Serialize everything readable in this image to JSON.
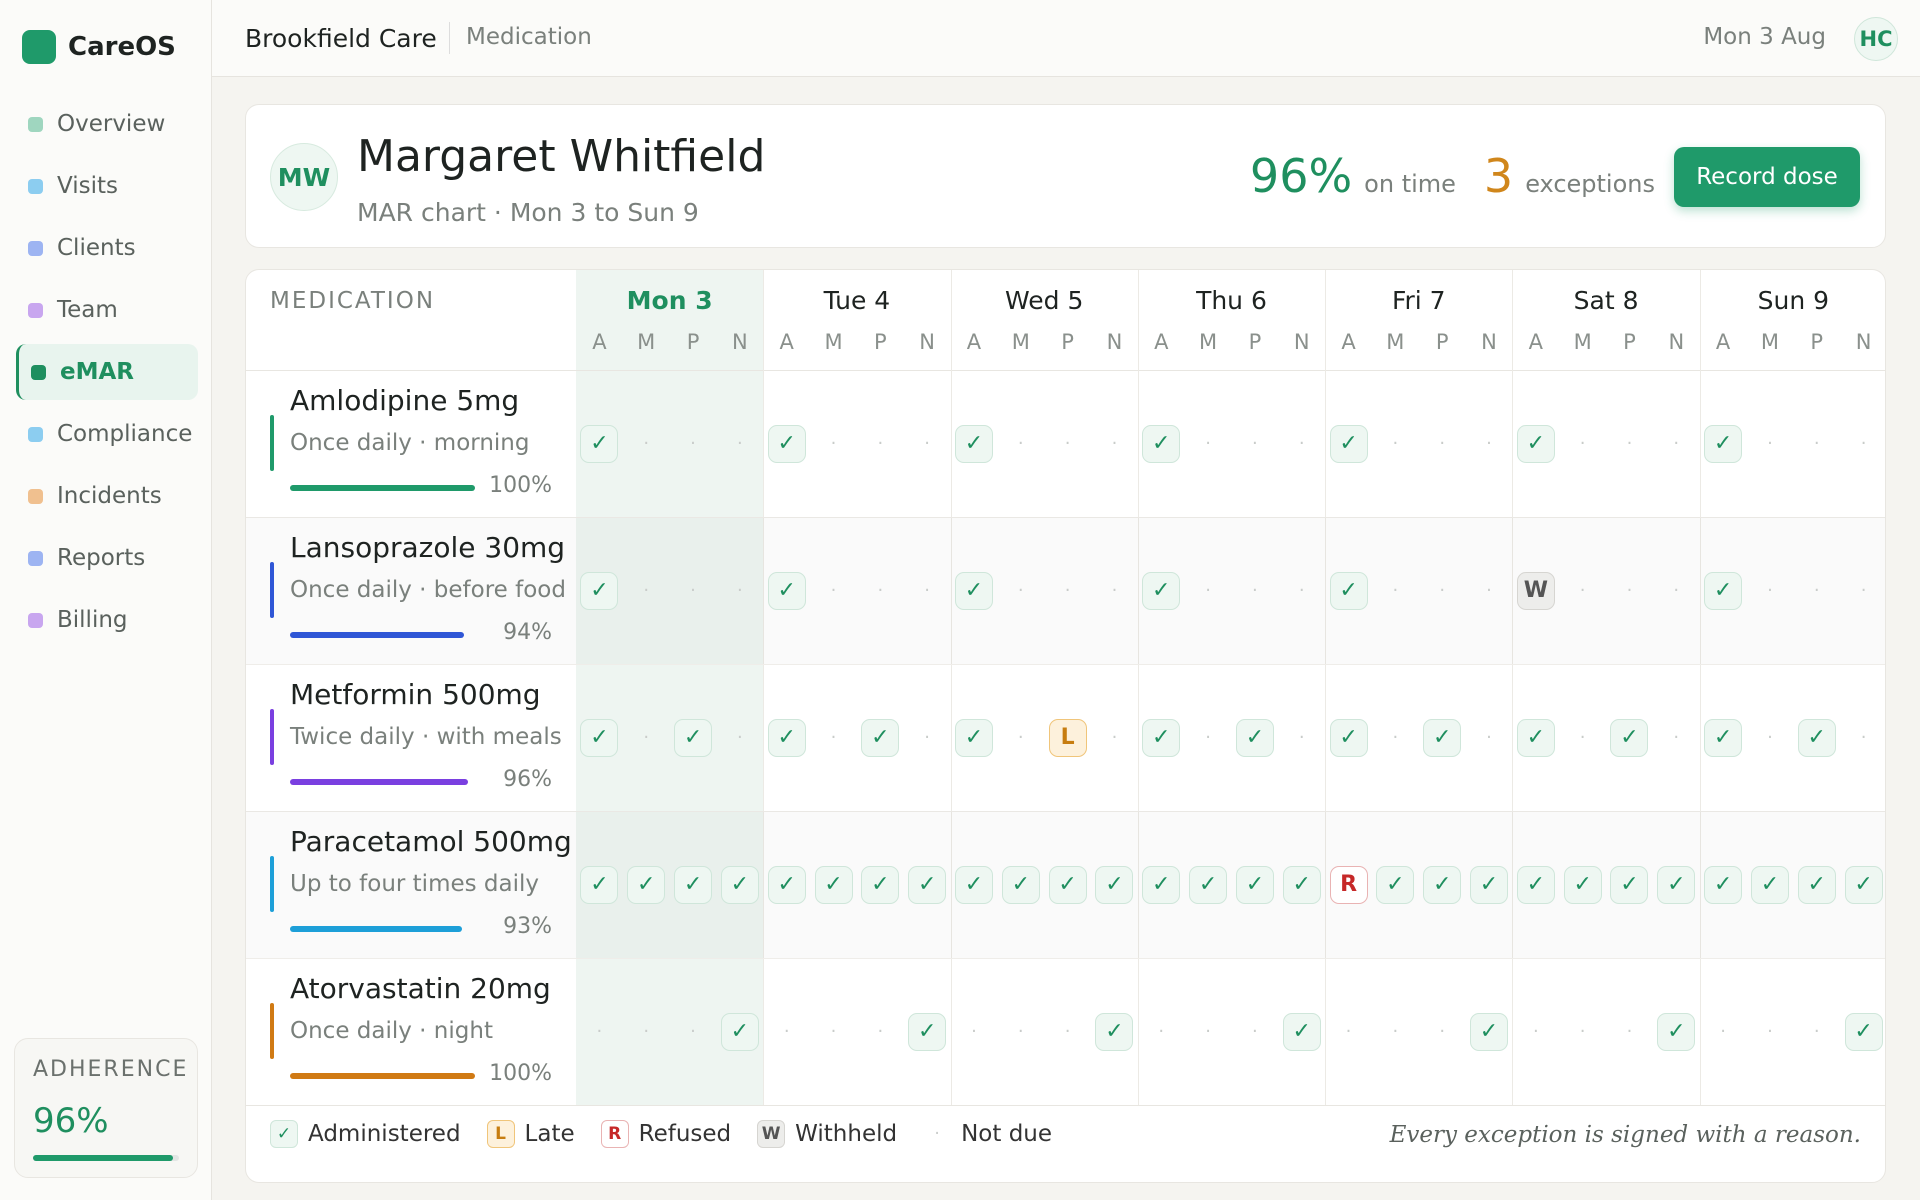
{
  "app": {
    "name": "CareOS"
  },
  "nav": [
    {
      "label": "Overview",
      "color": "#9fd6bf"
    },
    {
      "label": "Visits",
      "color": "#8ccdf0"
    },
    {
      "label": "Clients",
      "color": "#9db4f2"
    },
    {
      "label": "Team",
      "color": "#c8a6ef"
    },
    {
      "label": "eMAR",
      "color": "#1f8f5f",
      "active": true
    },
    {
      "label": "Compliance",
      "color": "#8ccdf0"
    },
    {
      "label": "Incidents",
      "color": "#f0c08f"
    },
    {
      "label": "Reports",
      "color": "#9db4f2"
    },
    {
      "label": "Billing",
      "color": "#c8a6ef"
    }
  ],
  "sidebar_footer": {
    "label": "ADHERENCE",
    "value": {
      "value": 96,
      "label": "96%"
    }
  },
  "header": {
    "org": "Brookfield Care",
    "section": "Medication",
    "date": "Mon 3 Aug",
    "user": "HC"
  },
  "patient": {
    "initials": "MW",
    "name": "Margaret Whitfield",
    "subtitle": "MAR chart · Mon 3 to Sun 9",
    "stats": [
      {
        "value": "96%",
        "label": "on time",
        "color": "#1f8f5f"
      },
      {
        "value": "3",
        "label": "exceptions",
        "color": "#d0861b"
      }
    ],
    "button": "Record dose"
  },
  "table": {
    "column_label": "MEDICATION",
    "days": [
      "Mon 3",
      "Tue 4",
      "Wed 5",
      "Thu 6",
      "Fri 7",
      "Sat 8",
      "Sun 9"
    ],
    "today": 0,
    "slots": [
      "A",
      "M",
      "P",
      "N"
    ],
    "medications": [
      {
        "name": "Amlodipine 5mg",
        "schedule": "Once daily · morning",
        "color": "#1f9a6a",
        "adherence": {
          "value": 100,
          "label": "100%"
        },
        "cells": [
          "✓",
          "·",
          "·",
          "·",
          "✓",
          "·",
          "·",
          "·",
          "✓",
          "·",
          "·",
          "·",
          "✓",
          "·",
          "·",
          "·",
          "✓",
          "·",
          "·",
          "·",
          "✓",
          "·",
          "·",
          "·",
          "✓",
          "·",
          "·",
          "·"
        ]
      },
      {
        "name": "Lansoprazole 30mg",
        "schedule": "Once daily · before food",
        "color": "#2f56d6",
        "adherence": {
          "value": 94,
          "label": "94%"
        },
        "cells": [
          "✓",
          "·",
          "·",
          "·",
          "✓",
          "·",
          "·",
          "·",
          "✓",
          "·",
          "·",
          "·",
          "✓",
          "·",
          "·",
          "·",
          "✓",
          "·",
          "·",
          "·",
          "W",
          "·",
          "·",
          "·",
          "✓",
          "·",
          "·",
          "·"
        ]
      },
      {
        "name": "Metformin 500mg",
        "schedule": "Twice daily · with meals",
        "color": "#7a3fe0",
        "adherence": {
          "value": 96,
          "label": "96%"
        },
        "cells": [
          "✓",
          "·",
          "✓",
          "·",
          "✓",
          "·",
          "✓",
          "·",
          "✓",
          "·",
          "L",
          "·",
          "✓",
          "·",
          "✓",
          "·",
          "✓",
          "·",
          "✓",
          "·",
          "✓",
          "·",
          "✓",
          "·",
          "✓",
          "·",
          "✓",
          "·"
        ]
      },
      {
        "name": "Paracetamol 500mg",
        "schedule": "Up to four times daily",
        "color": "#1d9fd8",
        "adherence": {
          "value": 93,
          "label": "93%"
        },
        "cells": [
          "✓",
          "✓",
          "✓",
          "✓",
          "✓",
          "✓",
          "✓",
          "✓",
          "✓",
          "✓",
          "✓",
          "✓",
          "✓",
          "✓",
          "✓",
          "✓",
          "R",
          "✓",
          "✓",
          "✓",
          "✓",
          "✓",
          "✓",
          "✓",
          "✓",
          "✓",
          "✓",
          "✓"
        ]
      },
      {
        "name": "Atorvastatin 20mg",
        "schedule": "Once daily · night",
        "color": "#d07a14",
        "adherence": {
          "value": 100,
          "label": "100%"
        },
        "cells": [
          "·",
          "·",
          "·",
          "✓",
          "·",
          "·",
          "·",
          "✓",
          "·",
          "·",
          "·",
          "✓",
          "·",
          "·",
          "·",
          "✓",
          "·",
          "·",
          "·",
          "✓",
          "·",
          "·",
          "·",
          "✓",
          "·",
          "·",
          "·",
          "✓"
        ]
      }
    ]
  },
  "legend": [
    {
      "symbol": "✓",
      "label": "Administered"
    },
    {
      "symbol": "L",
      "label": "Late"
    },
    {
      "symbol": "R",
      "label": "Refused"
    },
    {
      "symbol": "W",
      "label": "Withheld"
    },
    {
      "symbol": "·",
      "label": "Not due"
    }
  ],
  "note": "Every exception is signed with a reason."
}
